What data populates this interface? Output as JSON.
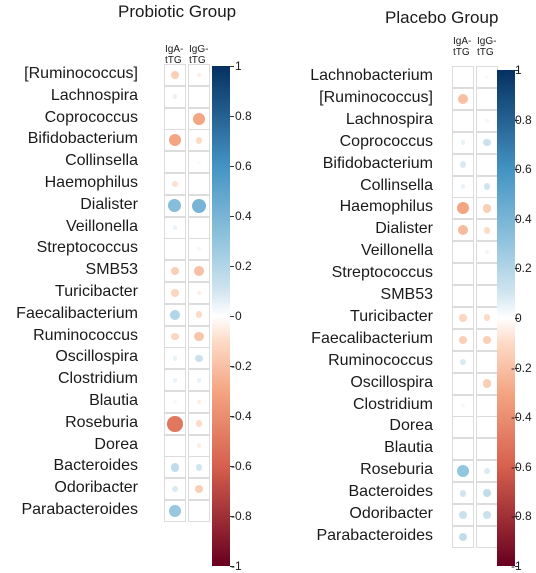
{
  "chart_data": [
    {
      "type": "heatmap",
      "title": "Probiotic Group",
      "columns": [
        "IgA-\ntTG",
        "IgG-\ntTG"
      ],
      "rows": [
        "[Ruminococcus]",
        "Lachnospira",
        "Coprococcus",
        "Bifidobacterium",
        "Collinsella",
        "Haemophilus",
        "Dialister",
        "Veillonella",
        "Streptococcus",
        "SMB53",
        "Turicibacter",
        "Faecalibacterium",
        "Ruminococcus",
        "Oscillospira",
        "Clostridium",
        "Blautia",
        "Roseburia",
        "Dorea",
        "Bacteroides",
        "Odoribacter",
        "Parabacteroides"
      ],
      "values": [
        [
          -0.15,
          -0.05
        ],
        [
          0.05,
          0.0
        ],
        [
          0.0,
          -0.3
        ],
        [
          -0.3,
          -0.1
        ],
        [
          0.0,
          0.02
        ],
        [
          -0.08,
          0.0
        ],
        [
          0.35,
          0.4
        ],
        [
          0.05,
          0.0
        ],
        [
          0.0,
          0.03
        ],
        [
          -0.15,
          -0.2
        ],
        [
          -0.12,
          -0.05
        ],
        [
          0.2,
          -0.1
        ],
        [
          -0.12,
          -0.18
        ],
        [
          0.05,
          0.12
        ],
        [
          0.05,
          0.05
        ],
        [
          0.02,
          -0.05
        ],
        [
          -0.5,
          -0.1
        ],
        [
          0.0,
          -0.05
        ],
        [
          0.15,
          0.1
        ],
        [
          0.08,
          -0.15
        ],
        [
          0.28,
          0.0
        ]
      ],
      "colorbar": {
        "range": [
          -1,
          1
        ],
        "ticks": [
          "1",
          "0.8",
          "0.6",
          "0.4",
          "0.2",
          "0",
          "-0.2",
          "-0.4",
          "-0.6",
          "-0.8",
          "-1"
        ]
      }
    },
    {
      "type": "heatmap",
      "title": "Placebo Group",
      "columns": [
        "IgA-\ntTG",
        "IgG-\ntTG"
      ],
      "rows": [
        "Lachnobacterium",
        "[Ruminococcus]",
        "Lachnospira",
        "Coprococcus",
        "Bifidobacterium",
        "Collinsella",
        "Haemophilus",
        "Dialister",
        "Veillonella",
        "Streptococcus",
        "SMB53",
        "Turicibacter",
        "Faecalibacterium",
        "Ruminococcus",
        "Oscillospira",
        "Clostridium",
        "Dorea",
        "Blautia",
        "Roseburia",
        "Bacteroides",
        "Odoribacter",
        "Parabacteroides"
      ],
      "values": [
        [
          0.0,
          0.02
        ],
        [
          -0.2,
          0.0
        ],
        [
          0.0,
          -0.03
        ],
        [
          0.05,
          0.12
        ],
        [
          0.08,
          0.0
        ],
        [
          0.05,
          0.1
        ],
        [
          -0.3,
          -0.15
        ],
        [
          -0.22,
          -0.1
        ],
        [
          0.0,
          0.03
        ],
        [
          0.0,
          0.0
        ],
        [
          0.0,
          0.0
        ],
        [
          -0.12,
          -0.1
        ],
        [
          -0.15,
          -0.15
        ],
        [
          0.08,
          0.0
        ],
        [
          0.0,
          -0.15
        ],
        [
          0.03,
          0.0
        ],
        [
          0.0,
          0.0
        ],
        [
          0.0,
          0.0
        ],
        [
          0.3,
          0.08
        ],
        [
          0.1,
          0.15
        ],
        [
          0.12,
          0.12
        ],
        [
          0.15,
          0.0
        ]
      ],
      "colorbar": {
        "range": [
          -1,
          1
        ],
        "ticks": [
          "1",
          "0.8",
          "0.6",
          "0.4",
          "0.2",
          "0",
          "-0.2",
          "-0.4",
          "-0.6",
          "-0.8",
          "-1"
        ]
      }
    }
  ]
}
